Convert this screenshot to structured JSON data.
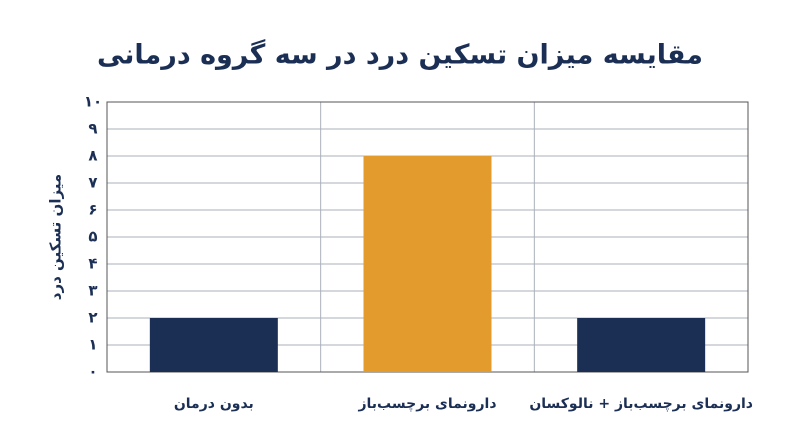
{
  "chart_data": {
    "type": "bar",
    "title": "مقایسه میزان تسکین درد در سه گروه درمانی",
    "y_label": "میزان تسکین درد",
    "categories": [
      "بدون درمان",
      "دارونمای برچسب‌باز",
      "دارونمای برچسب‌باز + نالوکسان"
    ],
    "values": [
      2,
      8,
      2
    ],
    "colors": [
      "#1b2f55",
      "#e39b2d",
      "#1b2f55"
    ],
    "ylim": [
      0,
      10
    ],
    "yticks": [
      {
        "value": 0,
        "label": "۰"
      },
      {
        "value": 1,
        "label": "۱"
      },
      {
        "value": 2,
        "label": "۲"
      },
      {
        "value": 3,
        "label": "۳"
      },
      {
        "value": 4,
        "label": "۴"
      },
      {
        "value": 5,
        "label": "۵"
      },
      {
        "value": 6,
        "label": "۶"
      },
      {
        "value": 7,
        "label": "۷"
      },
      {
        "value": 8,
        "label": "۸"
      },
      {
        "value": 9,
        "label": "۹"
      },
      {
        "value": 10,
        "label": "۱۰"
      }
    ],
    "grid": true
  }
}
